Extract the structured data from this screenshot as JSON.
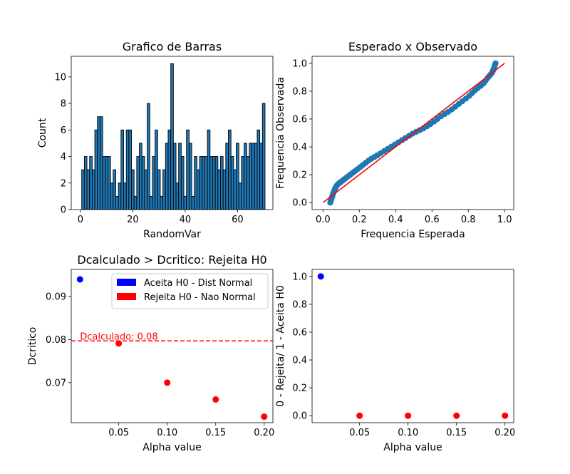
{
  "chart_data": [
    {
      "id": "hist",
      "type": "bar",
      "title": "Grafico de Barras",
      "xlabel": "RandomVar",
      "ylabel": "Count",
      "xlim": [
        -3.5,
        73.5
      ],
      "ylim": [
        0,
        11.55
      ],
      "xticks": [
        0,
        20,
        40,
        60
      ],
      "yticks": [
        0,
        2,
        4,
        6,
        8,
        10
      ],
      "bar_color": "#1f77b4",
      "edge_color": "#000000",
      "categories": [
        1,
        2,
        3,
        4,
        5,
        6,
        7,
        8,
        9,
        10,
        11,
        12,
        13,
        14,
        15,
        16,
        17,
        18,
        19,
        20,
        21,
        22,
        23,
        24,
        25,
        26,
        27,
        28,
        29,
        30,
        31,
        32,
        33,
        34,
        35,
        36,
        37,
        38,
        39,
        40,
        41,
        42,
        43,
        44,
        45,
        46,
        47,
        48,
        49,
        50,
        51,
        52,
        53,
        54,
        55,
        56,
        57,
        58,
        59,
        60,
        61,
        62,
        63,
        64,
        65,
        66,
        67,
        68,
        69,
        70
      ],
      "values": [
        3,
        4,
        3,
        4,
        3,
        6,
        7,
        7,
        4,
        4,
        4,
        2,
        3,
        1,
        2,
        6,
        2,
        6,
        6,
        3,
        1,
        4,
        5,
        4,
        3,
        8,
        1,
        4,
        6,
        3,
        1,
        3,
        5,
        6,
        11,
        5,
        2,
        5,
        4,
        1,
        6,
        5,
        1,
        4,
        3,
        4,
        4,
        4,
        6,
        4,
        4,
        4,
        3,
        4,
        3,
        5,
        6,
        4,
        3,
        5,
        2,
        4,
        5,
        4,
        5,
        5,
        5,
        6,
        5,
        8
      ]
    },
    {
      "id": "qq",
      "type": "scatter",
      "title": "Esperado x Observado",
      "xlabel": "Frequencia Esperada",
      "ylabel": "Frequencia Observada",
      "xlim": [
        -0.06,
        1.05
      ],
      "ylim": [
        -0.05,
        1.05
      ],
      "xticks": [
        0.0,
        0.2,
        0.4,
        0.6,
        0.8,
        1.0
      ],
      "yticks": [
        0.0,
        0.2,
        0.4,
        0.6,
        0.8,
        1.0
      ],
      "point_color": "#1f77b4",
      "line_color": "#ff0000",
      "line": {
        "x": [
          0,
          1
        ],
        "y": [
          0,
          1
        ]
      },
      "curve_x": [
        0.04,
        0.05,
        0.06,
        0.07,
        0.08,
        0.1,
        0.12,
        0.15,
        0.18,
        0.22,
        0.26,
        0.3,
        0.35,
        0.4,
        0.45,
        0.5,
        0.55,
        0.6,
        0.65,
        0.7,
        0.75,
        0.8,
        0.84,
        0.88,
        0.91,
        0.93,
        0.94,
        0.95
      ],
      "curve_y": [
        0.0,
        0.04,
        0.08,
        0.11,
        0.13,
        0.15,
        0.17,
        0.2,
        0.23,
        0.27,
        0.31,
        0.34,
        0.38,
        0.42,
        0.46,
        0.5,
        0.53,
        0.57,
        0.62,
        0.66,
        0.71,
        0.76,
        0.81,
        0.85,
        0.9,
        0.93,
        0.96,
        1.0
      ],
      "n_points": 70
    },
    {
      "id": "dcrit",
      "type": "scatter",
      "title": "Dcalculado > Dcritico: Rejeita H0",
      "xlabel": "Alpha value",
      "ylabel": "Dcritico",
      "xlim": [
        0.001,
        0.209
      ],
      "ylim": [
        0.0607,
        0.0963
      ],
      "xticks": [
        0.05,
        0.1,
        0.15,
        0.2
      ],
      "xtick_labels": [
        "0.05",
        "0.10",
        "0.15",
        "0.20"
      ],
      "yticks": [
        0.07,
        0.08,
        0.09
      ],
      "yticks_labels": [
        "0.07",
        "0.08",
        "0.09"
      ],
      "points": [
        {
          "x": 0.01,
          "y": 0.094,
          "color": "#0000ff"
        },
        {
          "x": 0.05,
          "y": 0.0791,
          "color": "#ff0000"
        },
        {
          "x": 0.1,
          "y": 0.07,
          "color": "#ff0000"
        },
        {
          "x": 0.15,
          "y": 0.0661,
          "color": "#ff0000"
        },
        {
          "x": 0.2,
          "y": 0.0621,
          "color": "#ff0000"
        }
      ],
      "hline": {
        "y": 0.0797,
        "color": "#ff0000",
        "label": "Dcalculado: 0.08"
      },
      "legend": {
        "placement": "upper-right",
        "entries": [
          {
            "label": "Aceita H0 - Dist Normal",
            "color": "#0000ff"
          },
          {
            "label": "Rejeita H0 - Nao Normal",
            "color": "#ff0000"
          }
        ]
      }
    },
    {
      "id": "decision",
      "type": "scatter",
      "title": "",
      "xlabel": "Alpha value",
      "ylabel": "0 - Rejeita/ 1 - Aceita H0",
      "xlim": [
        0.001,
        0.209
      ],
      "ylim": [
        -0.05,
        1.05
      ],
      "xticks": [
        0.05,
        0.1,
        0.15,
        0.2
      ],
      "xtick_labels": [
        "0.05",
        "0.10",
        "0.15",
        "0.20"
      ],
      "yticks": [
        0.0,
        0.2,
        0.4,
        0.6,
        0.8,
        1.0
      ],
      "points": [
        {
          "x": 0.01,
          "y": 1.0,
          "color": "#0000ff"
        },
        {
          "x": 0.05,
          "y": 0.0,
          "color": "#ff0000"
        },
        {
          "x": 0.1,
          "y": 0.0,
          "color": "#ff0000"
        },
        {
          "x": 0.15,
          "y": 0.0,
          "color": "#ff0000"
        },
        {
          "x": 0.2,
          "y": 0.0,
          "color": "#ff0000"
        }
      ]
    }
  ]
}
